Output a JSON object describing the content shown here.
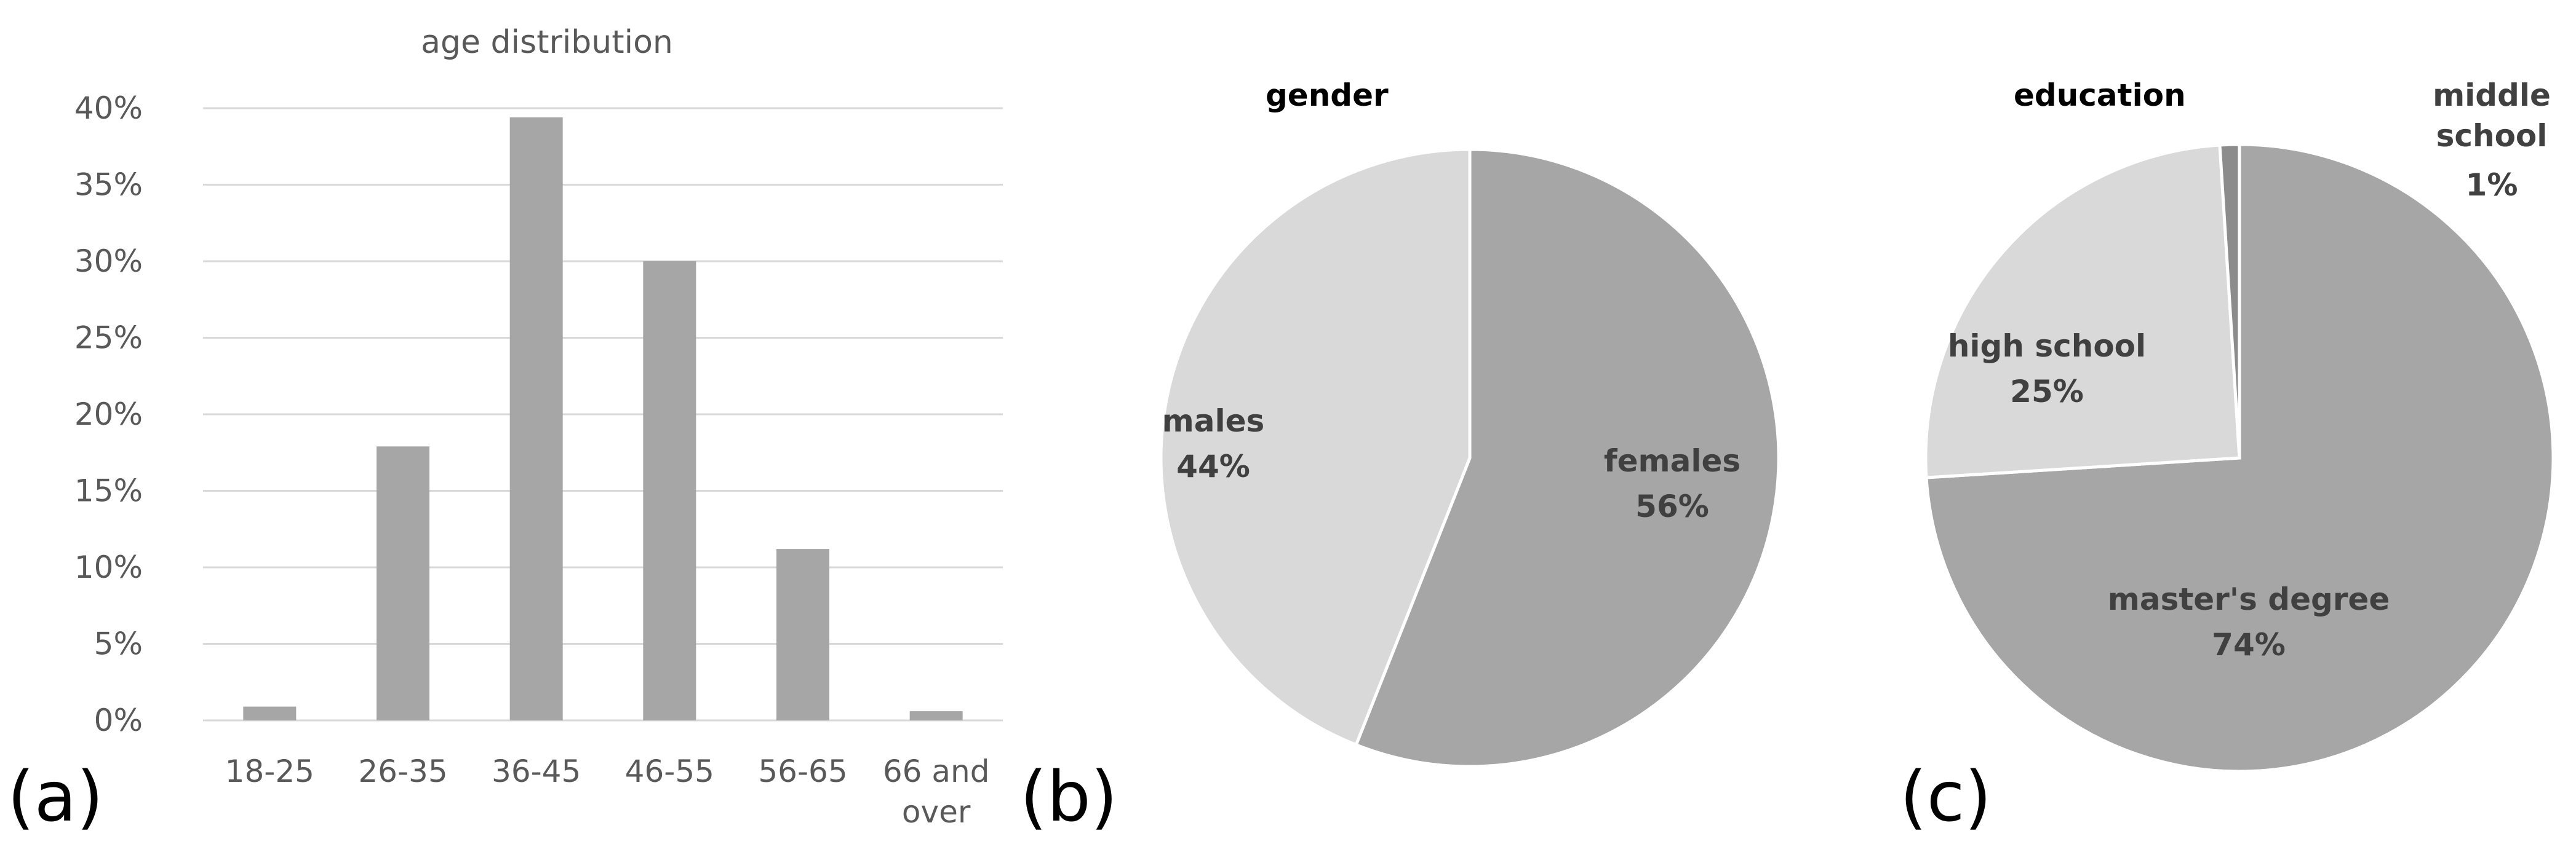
{
  "colors": {
    "bar": "#a6a6a6",
    "pie_dark": "#a6a6a6",
    "pie_light": "#d9d9d9",
    "pie_darkest": "#8c8c8c",
    "grid": "#d9d9d9",
    "axis_text": "#595959",
    "label_text": "#404040"
  },
  "panels": {
    "a": "(a)",
    "b": "(b)",
    "c": "(c)"
  },
  "chart_data": [
    {
      "type": "bar",
      "title": "age distribution",
      "categories": [
        "18-25",
        "26-35",
        "36-45",
        "46-55",
        "56-65",
        "66 and over"
      ],
      "category_lines": [
        [
          "18-25"
        ],
        [
          "26-35"
        ],
        [
          "36-45"
        ],
        [
          "46-55"
        ],
        [
          "56-65"
        ],
        [
          "66 and",
          "over"
        ]
      ],
      "values": [
        0.9,
        17.9,
        39.4,
        30.0,
        11.2,
        0.6
      ],
      "ylim": [
        0,
        40
      ],
      "yticks": [
        "0%",
        "5%",
        "10%",
        "15%",
        "20%",
        "25%",
        "30%",
        "35%",
        "40%"
      ],
      "ytick_values": [
        0,
        5,
        10,
        15,
        20,
        25,
        30,
        35,
        40
      ],
      "grid": true,
      "xlabel": "",
      "ylabel": ""
    },
    {
      "type": "pie",
      "title": "gender",
      "slices": [
        {
          "name": "females",
          "value": 56,
          "label": "56%"
        },
        {
          "name": "males",
          "value": 44,
          "label": "44%"
        }
      ]
    },
    {
      "type": "pie",
      "title": "education",
      "slices": [
        {
          "name": "master's degree",
          "value": 74,
          "label": "74%"
        },
        {
          "name": "high school",
          "value": 25,
          "label": "25%"
        },
        {
          "name": "middle school",
          "value": 1,
          "label": "1%",
          "name_lines": [
            "middle",
            "school"
          ]
        }
      ]
    }
  ]
}
